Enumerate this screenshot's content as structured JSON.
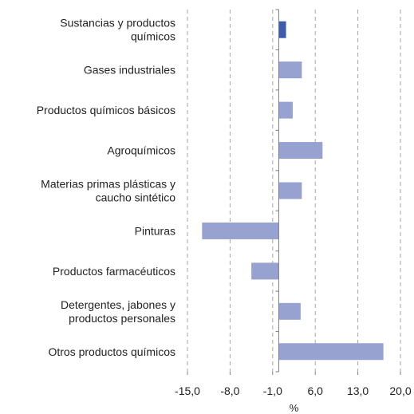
{
  "chart_data": {
    "type": "bar",
    "orientation": "horizontal",
    "categories": [
      [
        "Sustancias y productos",
        "químicos"
      ],
      [
        "Gases industriales"
      ],
      [
        "Productos químicos básicos"
      ],
      [
        "Agroquímicos"
      ],
      [
        "Materias primas plásticas y",
        "caucho sintético"
      ],
      [
        "Pinturas"
      ],
      [
        "Productos farmacéuticos"
      ],
      [
        "Detergentes, jabones y",
        "productos personales"
      ],
      [
        "Otros productos químicos"
      ]
    ],
    "values": [
      1.2,
      3.8,
      2.3,
      7.2,
      3.8,
      -12.6,
      -4.5,
      3.6,
      17.2
    ],
    "highlight_index": 0,
    "xlabel": "%",
    "xlim": [
      -15,
      20
    ],
    "xticks": [
      -15,
      -8,
      -1,
      6,
      13,
      20
    ],
    "xtick_labels": [
      "-15,0",
      "-8,0",
      "-1,0",
      "6,0",
      "13,0",
      "20,0"
    ],
    "grid": "vertical dashed",
    "colors": {
      "highlight": "#3F5BA9",
      "bar": "#98A2D0",
      "grid": "#A6A6A6",
      "axis": "#7F7F7F"
    }
  }
}
